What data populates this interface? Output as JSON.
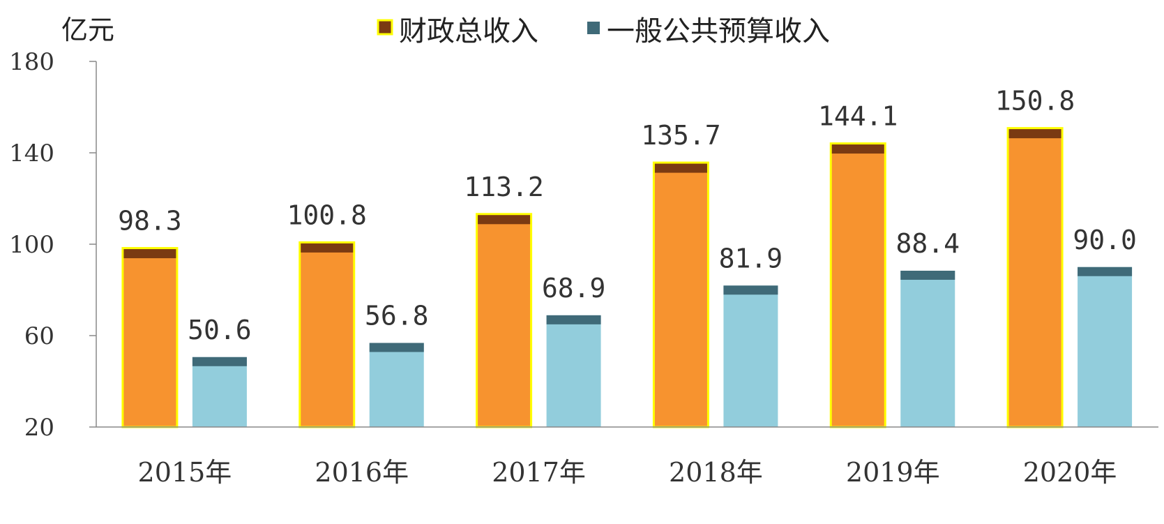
{
  "chart_data": {
    "type": "bar",
    "unit_label": "亿元",
    "categories": [
      "2015年",
      "2016年",
      "2017年",
      "2018年",
      "2019年",
      "2020年"
    ],
    "series": [
      {
        "name": "财政总收入",
        "values": [
          98.3,
          100.8,
          113.2,
          135.7,
          144.1,
          150.8
        ],
        "labels": [
          "98.3",
          "100.8",
          "113.2",
          "135.7",
          "144.1",
          "150.8"
        ],
        "color": "#F7932F",
        "cap_color": "#7A3A12",
        "border_color": "#FFFF00"
      },
      {
        "name": "一般公共预算收入",
        "values": [
          50.6,
          56.8,
          68.9,
          81.9,
          88.4,
          90.0
        ],
        "labels": [
          "50.6",
          "56.8",
          "68.9",
          "81.9",
          "88.4",
          "90.0"
        ],
        "color": "#92CDDC",
        "cap_color": "#3F6A78",
        "border_color": "#92CDDC"
      }
    ],
    "ylim": [
      20,
      180
    ],
    "yticks": [
      20,
      60,
      100,
      140,
      180
    ],
    "ytick_labels": [
      "20",
      "60",
      "100",
      "140",
      "180"
    ],
    "grid": false,
    "legend_position": "top-center"
  }
}
